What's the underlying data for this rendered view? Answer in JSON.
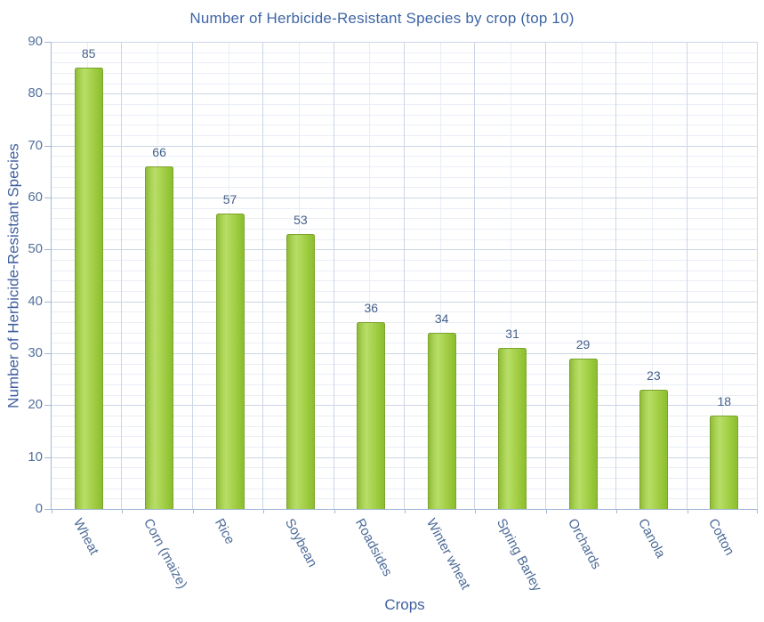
{
  "chart_data": {
    "type": "bar",
    "title": "Number of Herbicide-Resistant Species by crop (top 10)",
    "xlabel": "Crops",
    "ylabel": "Number of Herbicide-Resistant Species",
    "categories": [
      "Wheat",
      "Corn (maize)",
      "Rice",
      "Soybean",
      "Roadsides",
      "Winter wheat",
      "Spring Barley",
      "Orchards",
      "Canola",
      "Cotton"
    ],
    "values": [
      85,
      66,
      57,
      53,
      36,
      34,
      31,
      29,
      23,
      18
    ],
    "data_labels_shown": true,
    "ylim": [
      0,
      90
    ],
    "y_major_interval": 10,
    "y_minor_interval": 2,
    "y_tick_labels": [
      "0",
      "10",
      "20",
      "30",
      "40",
      "50",
      "60",
      "70",
      "80",
      "90"
    ],
    "x_label_angle_deg": 62,
    "grid": "major and minor, horizontal and vertical",
    "legend": "none",
    "colors": {
      "background": "#ffffff",
      "bar_fill_light": "#b7de68",
      "bar_fill_mid": "#a0cd45",
      "bar_fill_dark": "#8cbe2f",
      "bar_border": "#7ca32f",
      "major_grid": "#ccd6e6",
      "minor_grid": "#e9eef6",
      "axis_line": "#a3b8d8",
      "title_text": "#3e65a6",
      "axis_title_text": "#3f5f9e",
      "tick_text": "#52719c",
      "value_text": "#44608a",
      "x_label_text": "#4b6a97"
    }
  }
}
